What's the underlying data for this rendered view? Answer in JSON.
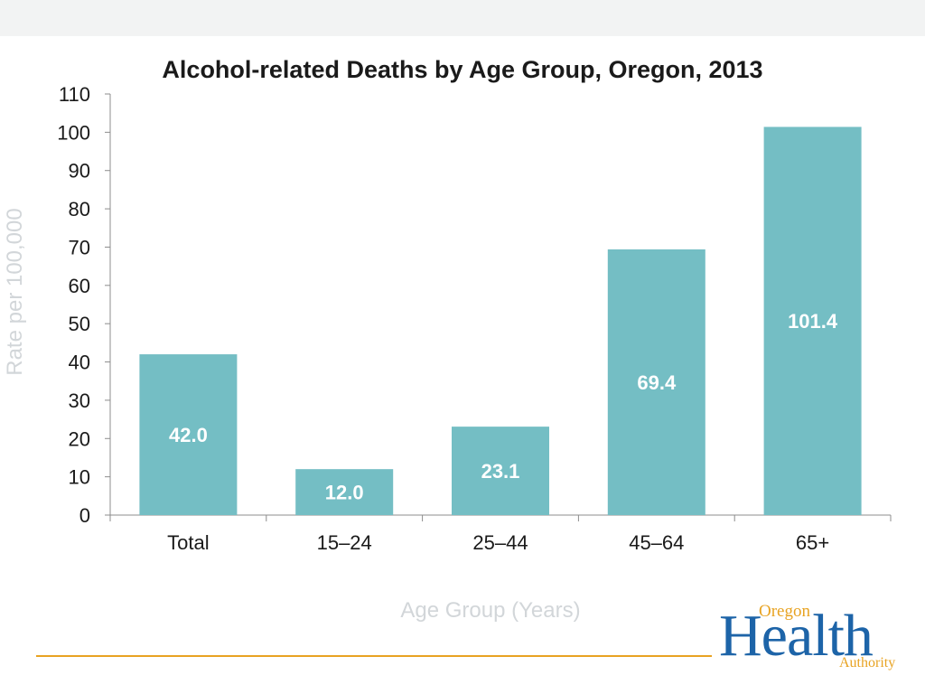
{
  "chart_data": {
    "type": "bar",
    "title": "Alcohol-related Deaths by Age Group, Oregon, 2013",
    "xlabel": "Age Group (Years)",
    "ylabel": "Rate per 100,000",
    "categories": [
      "Total",
      "15–24",
      "25–44",
      "45–64",
      "65+"
    ],
    "values": [
      42.0,
      12.0,
      23.1,
      69.4,
      101.4
    ],
    "data_labels": [
      "42.0",
      "12.0",
      "23.1",
      "69.4",
      "101.4"
    ],
    "ylim": [
      0,
      110
    ],
    "yticks": [
      0,
      10,
      20,
      30,
      40,
      50,
      60,
      70,
      80,
      90,
      100,
      110
    ],
    "grid": false,
    "colors": {
      "bar": "#74bec4",
      "bar_label": "#ffffff",
      "axis": "#8c8c8c",
      "muted_label": "#d2d6d9",
      "accent": "#e8a322",
      "brand": "#1d64a8"
    }
  },
  "logo": {
    "oregon": "Oregon",
    "health": "Health",
    "authority": "Authority"
  }
}
